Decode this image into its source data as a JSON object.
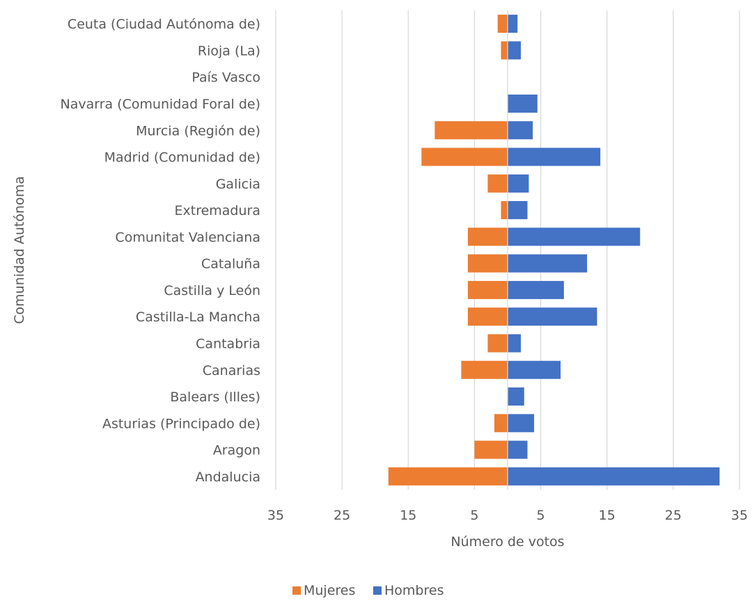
{
  "chart_data": {
    "type": "bar",
    "orientation": "horizontal",
    "layout": "butterfly",
    "categories": [
      "Andalucia",
      "Aragon",
      "Asturias (Principado de)",
      "Balears (Illes)",
      "Canarias",
      "Cantabria",
      "Castilla-La Mancha",
      "Castilla y León",
      "Cataluña",
      "Comunitat Valenciana",
      "Extremadura",
      "Galicia",
      "Madrid (Comunidad de)",
      "Murcia (Región de)",
      "Navarra (Comunidad Foral de)",
      "País Vasco",
      "Rioja (La)",
      "Ceuta (Ciudad Autónoma de)"
    ],
    "series": [
      {
        "name": "Mujeres",
        "color": "#ed7d31",
        "side": "left",
        "values": [
          18,
          5,
          2,
          0,
          7,
          3,
          6,
          6,
          6,
          6,
          1,
          3,
          13,
          11,
          0,
          0,
          1,
          1.5
        ]
      },
      {
        "name": "Hombres",
        "color": "#4472c4",
        "side": "right",
        "values": [
          32,
          3,
          4,
          2.5,
          8,
          2,
          13.5,
          8.5,
          12,
          20,
          3,
          3.2,
          14,
          3.8,
          4.5,
          0,
          2,
          1.5
        ]
      }
    ],
    "x_ticks": [
      "35",
      "25",
      "15",
      "5",
      "5",
      "15",
      "25",
      "35"
    ],
    "x_tick_values": [
      -35,
      -25,
      -15,
      -5,
      5,
      15,
      25,
      35
    ],
    "xlim": [
      -35,
      35
    ],
    "xlabel": "Número de votos",
    "ylabel": "Comunidad Autónoma",
    "grid": true,
    "legend_position": "bottom"
  }
}
